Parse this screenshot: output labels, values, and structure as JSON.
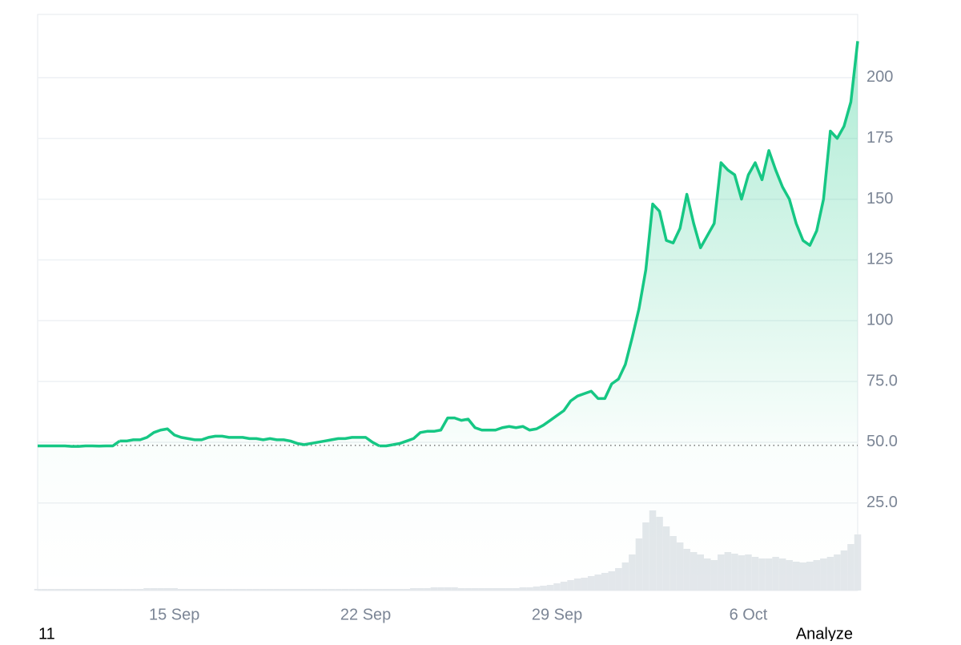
{
  "chart_data": {
    "type": "line",
    "categories": [
      null,
      null,
      null,
      null,
      null,
      null,
      null,
      null,
      null,
      null,
      null,
      null,
      null,
      null,
      null,
      null,
      null,
      null,
      null,
      null,
      "15 Sep",
      null,
      null,
      null,
      null,
      null,
      null,
      null,
      null,
      null,
      null,
      null,
      null,
      null,
      null,
      null,
      null,
      null,
      null,
      null,
      null,
      null,
      null,
      null,
      null,
      null,
      null,
      null,
      "22 Sep",
      null,
      null,
      null,
      null,
      null,
      null,
      null,
      null,
      null,
      null,
      null,
      null,
      null,
      null,
      null,
      null,
      null,
      null,
      null,
      null,
      null,
      null,
      null,
      null,
      null,
      null,
      null,
      "29 Sep",
      null,
      null,
      null,
      null,
      null,
      null,
      null,
      null,
      null,
      null,
      null,
      null,
      null,
      null,
      null,
      null,
      null,
      null,
      null,
      null,
      null,
      null,
      null,
      null,
      null,
      null,
      null,
      "6 Oct",
      null,
      null,
      null,
      null,
      null,
      null,
      null,
      null,
      null,
      null,
      null,
      null,
      null,
      null,
      null,
      null
    ],
    "values": [
      48.5,
      48.5,
      48.5,
      48.5,
      48.5,
      48.3,
      48.3,
      48.5,
      48.5,
      48.4,
      48.5,
      48.5,
      50.5,
      50.5,
      51,
      51,
      52,
      54,
      55,
      55.5,
      53,
      52,
      51.5,
      51,
      51,
      52,
      52.5,
      52.5,
      52,
      52,
      52,
      51.5,
      51.5,
      51,
      51.5,
      51,
      51,
      50.5,
      49.5,
      49,
      49.5,
      50,
      50.5,
      51,
      51.5,
      51.5,
      52,
      52,
      52,
      50,
      48.5,
      48.5,
      49,
      49.5,
      50.5,
      51.5,
      54,
      54.5,
      54.5,
      55,
      60,
      60,
      59,
      59.5,
      56,
      55,
      55,
      55,
      56,
      56.5,
      56,
      56.5,
      55,
      55.5,
      57,
      59,
      61,
      63,
      67,
      69,
      70,
      71,
      68,
      68,
      74,
      76,
      82,
      93,
      105,
      121,
      148,
      145,
      133,
      132,
      138,
      152,
      140,
      130,
      135,
      140,
      165,
      162,
      160,
      150,
      160,
      165,
      158,
      170,
      162,
      155,
      150,
      140,
      133,
      131,
      137,
      150,
      178,
      175,
      180,
      190,
      215
    ],
    "volume": [
      2,
      2,
      2,
      2,
      2,
      2,
      2,
      2,
      2,
      2,
      2,
      2,
      2,
      2,
      2,
      2,
      3,
      3,
      3,
      3,
      3,
      2,
      2,
      2,
      2,
      2,
      2,
      2,
      2,
      2,
      2,
      2,
      2,
      2,
      2,
      2,
      2,
      2,
      2,
      2,
      2,
      2,
      2,
      2,
      2,
      2,
      2,
      2,
      2,
      2,
      2,
      2,
      2,
      2,
      2,
      3,
      3,
      3,
      4,
      4,
      4,
      4,
      3,
      3,
      3,
      3,
      3,
      3,
      3,
      3,
      3,
      4,
      4,
      5,
      6,
      7,
      9,
      11,
      13,
      15,
      16,
      18,
      20,
      22,
      24,
      28,
      35,
      45,
      65,
      85,
      100,
      92,
      80,
      68,
      60,
      52,
      48,
      45,
      40,
      38,
      45,
      48,
      46,
      44,
      45,
      42,
      40,
      40,
      42,
      40,
      38,
      36,
      35,
      36,
      38,
      40,
      42,
      45,
      50,
      58,
      70
    ],
    "volume_lim": [
      0,
      100
    ],
    "baseline": 48.7,
    "color_up": "#16c784",
    "color_down": "#ea3943",
    "volume_color": "#e3e7eb",
    "ylim": [
      -11,
      226
    ],
    "yticks": [
      {
        "value": 25,
        "label": "25.0"
      },
      {
        "value": 50,
        "label": "50.0"
      },
      {
        "value": 75,
        "label": "75.0"
      },
      100,
      125,
      150,
      175,
      200
    ],
    "grid": true,
    "footer_left": "11",
    "footer_right": "Analyze"
  }
}
